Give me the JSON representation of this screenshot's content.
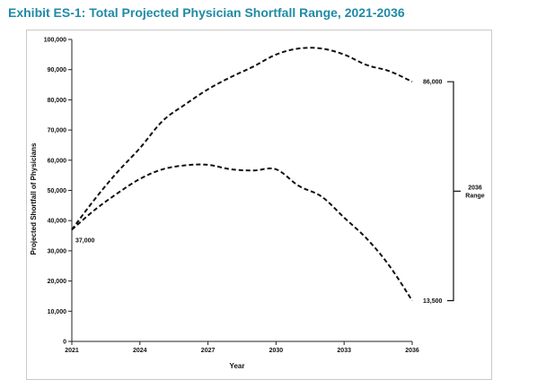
{
  "title": "Exhibit ES-1: Total Projected Physician Shortfall Range, 2021-2036",
  "chart_data": {
    "type": "line",
    "xlabel": "Year",
    "ylabel": "Projected Shortfall of Physicians",
    "xlim": [
      2021,
      2036
    ],
    "ylim": [
      0,
      100000
    ],
    "x_ticks": [
      "2021",
      "2024",
      "2027",
      "2030",
      "2033",
      "2036"
    ],
    "y_ticks": [
      "0",
      "10,000",
      "20,000",
      "30,000",
      "40,000",
      "50,000",
      "60,000",
      "70,000",
      "80,000",
      "90,000",
      "100,000"
    ],
    "grid": false,
    "line_style": "dashed",
    "series": [
      {
        "x": [
          2021,
          2022,
          2023,
          2024,
          2025,
          2026,
          2027,
          2028,
          2029,
          2030,
          2031,
          2032,
          2033,
          2034,
          2035,
          2036
        ],
        "values": [
          37000,
          47000,
          56000,
          64000,
          73000,
          78500,
          83500,
          87500,
          91000,
          95000,
          97000,
          97000,
          95000,
          91500,
          89500,
          86000
        ]
      },
      {
        "x": [
          2021,
          2022,
          2023,
          2024,
          2025,
          2026,
          2027,
          2028,
          2029,
          2030,
          2031,
          2032,
          2033,
          2034,
          2035,
          2036
        ],
        "values": [
          37000,
          43500,
          49000,
          53800,
          57000,
          58300,
          58500,
          57000,
          56600,
          57000,
          51500,
          48000,
          41000,
          34000,
          25000,
          13500
        ]
      }
    ],
    "annotations": {
      "start": "37,000",
      "upper_end": "86,000",
      "lower_end": "13,500",
      "range_label_line1": "2036",
      "range_label_line2": "Range"
    }
  }
}
